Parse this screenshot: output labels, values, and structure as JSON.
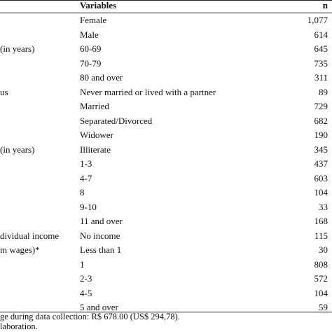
{
  "table": {
    "header": [
      "Variables",
      "n"
    ],
    "rows": [
      {
        "variable": "Female",
        "n": "1,077"
      },
      {
        "variable": "Male",
        "n": "614"
      },
      {
        "group": "(in years)",
        "variable": "60-69",
        "n": "645"
      },
      {
        "variable": "70-79",
        "n": "735"
      },
      {
        "variable": "80 and over",
        "n": "311"
      },
      {
        "group": "us",
        "variable": "Never married or lived with a partner",
        "n": "89"
      },
      {
        "variable": "Married",
        "n": "729"
      },
      {
        "variable": "Separated/Divorced",
        "n": "682"
      },
      {
        "variable": "Widower",
        "n": "190"
      },
      {
        "group": "(in years)",
        "variable": "Illiterate",
        "n": "345"
      },
      {
        "variable": "1-3",
        "n": "437"
      },
      {
        "variable": "4-7",
        "n": "603"
      },
      {
        "variable": "8",
        "n": "104"
      },
      {
        "variable": "9-10",
        "n": "33"
      },
      {
        "variable": "11 and over",
        "n": "168"
      },
      {
        "group": "dividual income",
        "variable": "No income",
        "n": "115"
      },
      {
        "group": "m wages)*",
        "variable": "Less than 1",
        "n": "30"
      },
      {
        "variable": "1",
        "n": "808"
      },
      {
        "variable": "2-3",
        "n": "572"
      },
      {
        "variable": "4-5",
        "n": "104"
      },
      {
        "variable": "5 and over",
        "n": "59"
      }
    ],
    "footnotes": [
      "ge during data collection: R$ 678.00 (US$ 294,78).",
      "laboration."
    ]
  }
}
